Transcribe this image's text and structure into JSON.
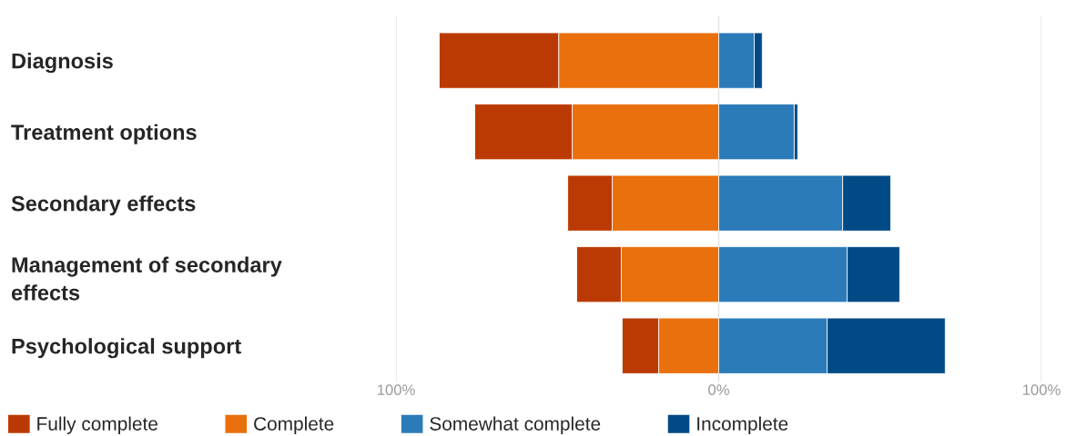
{
  "chart_data": {
    "type": "bar",
    "orientation": "horizontal",
    "stacked": true,
    "categories": [
      "Diagnosis",
      "Treatment options",
      "Secondary effects",
      "Management of secondary\neffects",
      "Psychological support"
    ],
    "series": [
      {
        "name": "Complete",
        "color": "#ea700d",
        "values": [
          -49.6,
          -45.4,
          -33,
          -30.2,
          -18.6
        ]
      },
      {
        "name": "Fully complete",
        "color": "#bb3a03",
        "values": [
          -37,
          -30.2,
          -13.8,
          -13.8,
          -11.3
        ]
      },
      {
        "name": "Somewhat complete",
        "color": "#2b7bb9",
        "values": [
          11,
          23.4,
          38.4,
          39.8,
          33.6
        ]
      },
      {
        "name": "Incomplete",
        "color": "#024a86",
        "values": [
          2.5,
          1.1,
          14.9,
          16.3,
          36.6
        ]
      }
    ],
    "xlim": [
      -100,
      100
    ],
    "xticks": [
      {
        "value": -100,
        "label": "100%"
      },
      {
        "value": 0,
        "label": "0%"
      },
      {
        "value": 100,
        "label": "100%"
      }
    ],
    "grid": "x",
    "legend": "bottom"
  }
}
